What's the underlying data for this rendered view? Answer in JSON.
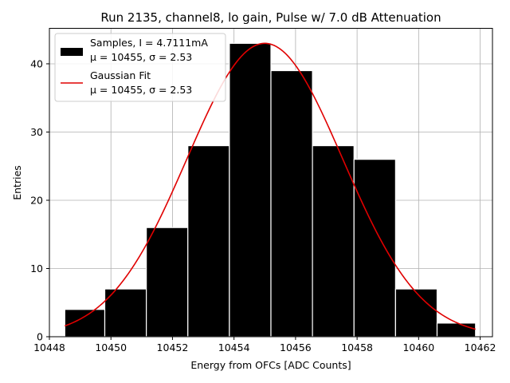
{
  "chart_data": {
    "type": "bar",
    "title": "Run 2135, channel8, lo gain, Pulse w/ 7.0 dB Attenuation",
    "xlabel": "Energy from OFCs [ADC Counts]",
    "ylabel": "Entries",
    "xlim": [
      10448.0,
      10462.4
    ],
    "ylim": [
      0,
      45.2
    ],
    "grid": true,
    "legend_position": "top-left",
    "xticks": [
      10448,
      10450,
      10452,
      10454,
      10456,
      10458,
      10460,
      10462
    ],
    "xtick_labels": [
      "10448",
      "10450",
      "10452",
      "10454",
      "10456",
      "10458",
      "10460",
      "10462"
    ],
    "yticks": [
      0,
      10,
      20,
      30,
      40
    ],
    "ytick_labels": [
      "0",
      "10",
      "20",
      "30",
      "40"
    ],
    "bins": [
      {
        "x0": 10448.5,
        "x1": 10449.8,
        "value": 4
      },
      {
        "x0": 10449.8,
        "x1": 10451.15,
        "value": 7
      },
      {
        "x0": 10451.15,
        "x1": 10452.5,
        "value": 16
      },
      {
        "x0": 10452.5,
        "x1": 10453.85,
        "value": 28
      },
      {
        "x0": 10453.85,
        "x1": 10455.2,
        "value": 43
      },
      {
        "x0": 10455.2,
        "x1": 10456.55,
        "value": 39
      },
      {
        "x0": 10456.55,
        "x1": 10457.9,
        "value": 28
      },
      {
        "x0": 10457.9,
        "x1": 10459.25,
        "value": 26
      },
      {
        "x0": 10459.25,
        "x1": 10460.6,
        "value": 7
      },
      {
        "x0": 10460.6,
        "x1": 10461.85,
        "value": 2
      }
    ],
    "fit": {
      "name": "Gaussian Fit",
      "mu": 10455.0,
      "sigma": 2.53,
      "amplitude": 43.0,
      "x_range": [
        10448.5,
        10461.85
      ],
      "color": "#e00000"
    },
    "series": [
      {
        "name": "Samples",
        "color": "#000000"
      },
      {
        "name": "Gaussian Fit",
        "color": "#e00000"
      }
    ],
    "legend": [
      {
        "label_line1": "Samples, I = 4.7111mA",
        "label_line2": "μ = 10455, σ = 2.53"
      },
      {
        "label_line1": "Gaussian Fit",
        "label_line2": "μ = 10455, σ = 2.53"
      }
    ]
  }
}
